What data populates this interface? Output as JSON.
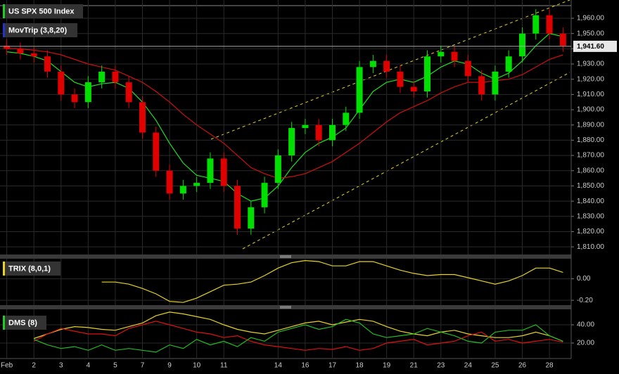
{
  "chart_data": [
    {
      "type": "candlestick",
      "name": "US SPX 500 Index",
      "legend_color": "#22cc22",
      "up_color": "#00e000",
      "down_color": "#e00000",
      "categories": [
        "Feb",
        null,
        "2",
        null,
        "3",
        null,
        "4",
        null,
        "5",
        null,
        "7",
        null,
        "9",
        null,
        "10",
        null,
        "11",
        null,
        null,
        null,
        "14",
        null,
        "16",
        null,
        "17",
        null,
        "18",
        null,
        "19",
        null,
        "21",
        null,
        "23",
        null,
        "24",
        null,
        "25",
        null,
        "26",
        null,
        "28",
        null
      ],
      "open": [
        1942,
        1940,
        1937,
        1935,
        1925,
        1910,
        1905,
        1918,
        1925,
        1918,
        1905,
        1885,
        1860,
        1845,
        1850,
        1852,
        1868,
        1850,
        1822,
        1836,
        1852,
        1870,
        1888,
        1890,
        1880,
        1890,
        1898,
        1928,
        1932,
        1925,
        1915,
        1912,
        1935,
        1938,
        1932,
        1922,
        1910,
        1925,
        1935,
        1950,
        1962,
        1950
      ],
      "high": [
        1946,
        1944,
        1941,
        1939,
        1929,
        1914,
        1922,
        1929,
        1929,
        1922,
        1909,
        1889,
        1864,
        1854,
        1856,
        1872,
        1872,
        1854,
        1840,
        1856,
        1874,
        1892,
        1894,
        1894,
        1894,
        1902,
        1932,
        1936,
        1936,
        1929,
        1919,
        1939,
        1942,
        1942,
        1936,
        1926,
        1929,
        1939,
        1954,
        1966,
        1966,
        1954
      ],
      "low": [
        1936,
        1933,
        1931,
        1921,
        1906,
        1901,
        1901,
        1914,
        1914,
        1901,
        1881,
        1856,
        1841,
        1841,
        1846,
        1848,
        1846,
        1818,
        1818,
        1832,
        1848,
        1866,
        1884,
        1876,
        1876,
        1886,
        1894,
        1924,
        1921,
        1911,
        1908,
        1908,
        1931,
        1928,
        1918,
        1906,
        1906,
        1921,
        1931,
        1946,
        1946,
        1938
      ],
      "close": [
        1940,
        1937,
        1935,
        1925,
        1910,
        1905,
        1918,
        1925,
        1918,
        1905,
        1885,
        1860,
        1845,
        1850,
        1852,
        1868,
        1850,
        1822,
        1836,
        1852,
        1870,
        1888,
        1890,
        1880,
        1890,
        1898,
        1928,
        1932,
        1925,
        1915,
        1912,
        1935,
        1938,
        1932,
        1922,
        1910,
        1925,
        1935,
        1950,
        1962,
        1950,
        1942
      ],
      "overlay": {
        "name": "MovTrip (3,8,20)",
        "legend_color": "#2233cc",
        "lines": [
          {
            "color": "#22dd22",
            "values": [
              1938,
              1937,
              1935,
              1932,
              1925,
              1918,
              1915,
              1917,
              1918,
              1914,
              1905,
              1893,
              1878,
              1865,
              1857,
              1855,
              1853,
              1845,
              1840,
              1842,
              1850,
              1862,
              1872,
              1878,
              1882,
              1888,
              1900,
              1912,
              1918,
              1920,
              1918,
              1922,
              1928,
              1932,
              1930,
              1924,
              1920,
              1924,
              1932,
              1942,
              1950,
              1948
            ]
          },
          {
            "color": "#cc1111",
            "values": [
              1940,
              1940,
              1939,
              1938,
              1936,
              1933,
              1930,
              1928,
              1926,
              1922,
              1918,
              1912,
              1905,
              1897,
              1890,
              1884,
              1878,
              1870,
              1862,
              1858,
              1855,
              1856,
              1858,
              1862,
              1866,
              1872,
              1878,
              1885,
              1892,
              1898,
              1902,
              1906,
              1911,
              1915,
              1918,
              1918,
              1919,
              1920,
              1923,
              1928,
              1933,
              1936
            ]
          }
        ]
      },
      "last_price": {
        "value": 1941.6,
        "label": "1,941.60"
      },
      "ylim": [
        1805,
        1972
      ],
      "yticks": [
        {
          "value": 1810,
          "label": "1,810.00"
        },
        {
          "value": 1820,
          "label": "1,820.00"
        },
        {
          "value": 1830,
          "label": "1,830.00"
        },
        {
          "value": 1840,
          "label": "1,840.00"
        },
        {
          "value": 1850,
          "label": "1,850.00"
        },
        {
          "value": 1860,
          "label": "1,860.00"
        },
        {
          "value": 1870,
          "label": "1,870.00"
        },
        {
          "value": 1880,
          "label": "1,880.00"
        },
        {
          "value": 1890,
          "label": "1,890.00"
        },
        {
          "value": 1900,
          "label": "1,900.00"
        },
        {
          "value": 1910,
          "label": "1,910.00"
        },
        {
          "value": 1920,
          "label": "1,920.00"
        },
        {
          "value": 1930,
          "label": "1,930.00"
        },
        {
          "value": 1940,
          "label": "1,940.00"
        },
        {
          "value": 1950,
          "label": "1,950.00"
        },
        {
          "value": 1960,
          "label": "1,960.00"
        }
      ],
      "grid": true
    },
    {
      "type": "line",
      "series": [
        {
          "name": "TRIX (8,0,1)",
          "color": "#e6d22a",
          "values": [
            null,
            null,
            null,
            null,
            null,
            null,
            null,
            -0.03,
            -0.03,
            -0.05,
            -0.09,
            -0.14,
            -0.21,
            -0.22,
            -0.18,
            -0.12,
            -0.06,
            -0.05,
            -0.03,
            0.03,
            0.1,
            0.15,
            0.17,
            0.16,
            0.12,
            0.12,
            0.16,
            0.16,
            0.12,
            0.08,
            0.05,
            0.03,
            0.04,
            0.04,
            0.01,
            -0.02,
            -0.05,
            -0.02,
            0.03,
            0.1,
            0.1,
            0.06
          ]
        }
      ],
      "ylim": [
        -0.245,
        0.187
      ],
      "yticks": [
        {
          "value": 0,
          "label": "0.00"
        },
        {
          "value": -0.2,
          "label": "-0.20"
        }
      ],
      "grid": true
    },
    {
      "type": "line",
      "name": "DMS (8)",
      "legend_color": "#22cc22",
      "series": [
        {
          "color": "#e6d22a",
          "values": [
            null,
            null,
            25,
            30,
            35,
            38,
            37,
            35,
            34,
            38,
            42,
            50,
            54,
            52,
            49,
            46,
            40,
            35,
            32,
            30,
            34,
            38,
            42,
            44,
            40,
            43,
            46,
            44,
            38,
            33,
            30,
            28,
            32,
            34,
            30,
            28,
            26,
            26,
            28,
            32,
            28,
            22
          ]
        },
        {
          "color": "#dd1111",
          "values": [
            null,
            null,
            22,
            30,
            36,
            33,
            30,
            30,
            28,
            36,
            40,
            44,
            40,
            36,
            32,
            30,
            26,
            28,
            22,
            18,
            16,
            14,
            12,
            14,
            13,
            16,
            12,
            14,
            20,
            22,
            24,
            18,
            20,
            22,
            28,
            32,
            22,
            24,
            20,
            22,
            24,
            21
          ]
        },
        {
          "color": "#22bb22",
          "values": [
            null,
            null,
            24,
            18,
            14,
            16,
            12,
            18,
            12,
            14,
            12,
            10,
            18,
            14,
            24,
            18,
            22,
            16,
            26,
            22,
            32,
            36,
            40,
            35,
            38,
            46,
            42,
            30,
            26,
            28,
            30,
            36,
            32,
            28,
            22,
            20,
            32,
            34,
            34,
            40,
            28,
            22
          ]
        }
      ],
      "ylim": [
        3,
        57
      ],
      "yticks": [
        {
          "value": 40,
          "label": "40.00"
        },
        {
          "value": 20,
          "label": "20.00"
        }
      ],
      "grid": true
    }
  ]
}
